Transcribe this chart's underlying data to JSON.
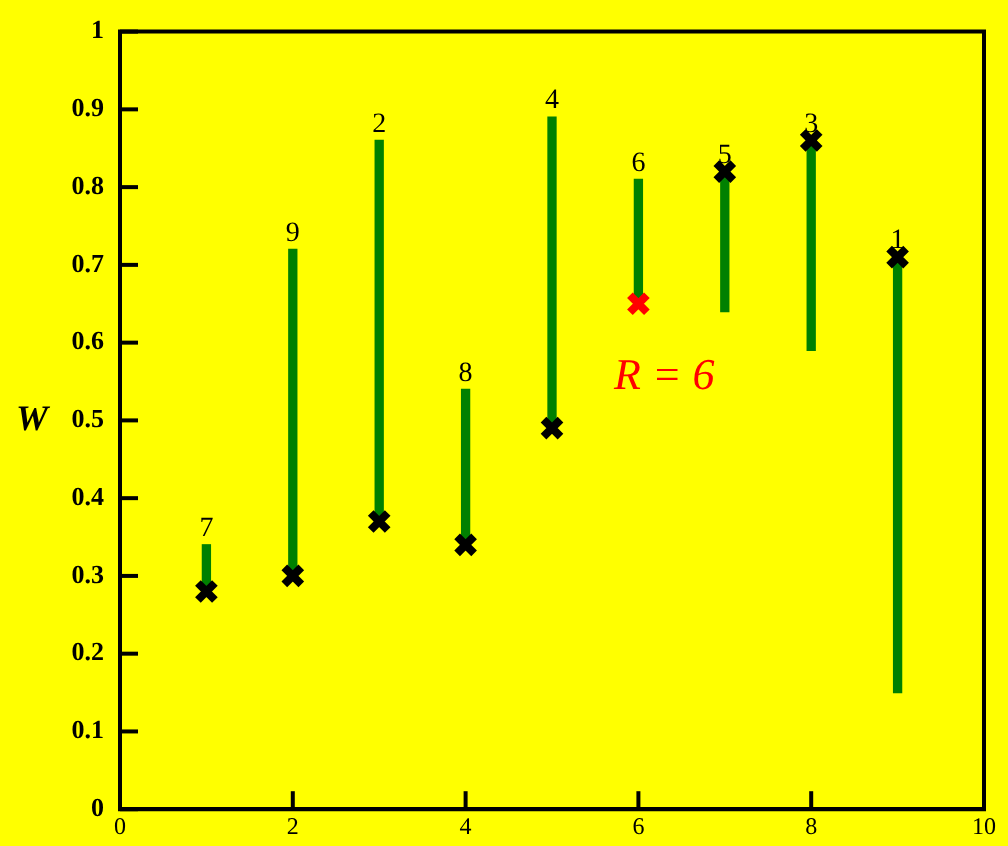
{
  "chart_data": {
    "type": "bar",
    "ylabel": "W",
    "xlim": [
      0,
      10
    ],
    "xticks": [
      0,
      2,
      4,
      6,
      8,
      10
    ],
    "ylim": [
      0,
      1
    ],
    "yticks": [
      0,
      0.1,
      0.2,
      0.3,
      0.4,
      0.5,
      0.6,
      0.7,
      0.8,
      0.9,
      1
    ],
    "grid": false,
    "x": [
      1,
      2,
      3,
      4,
      5,
      6,
      7,
      8,
      9
    ],
    "series": [
      {
        "color": "#008000",
        "base": [
          0.28,
          0.3,
          0.37,
          0.34,
          0.49,
          0.65,
          0.64,
          0.59,
          0.15
        ],
        "values": [
          0.06,
          0.42,
          0.49,
          0.2,
          0.4,
          0.16,
          0.18,
          0.27,
          0.56
        ]
      },
      {
        "type": "scatter",
        "marker": "cross",
        "colors": [
          "#000000",
          "#000000",
          "#000000",
          "#000000",
          "#000000",
          "#ff0000",
          "#000000",
          "#000000",
          "#000000"
        ],
        "values": [
          0.28,
          0.3,
          0.37,
          0.34,
          0.49,
          0.65,
          0.82,
          0.86,
          0.71
        ]
      }
    ],
    "annotations": [
      {
        "text": "7",
        "x": 1,
        "y": 0.34
      },
      {
        "text": "9",
        "x": 2,
        "y": 0.72
      },
      {
        "text": "2",
        "x": 3,
        "y": 0.86
      },
      {
        "text": "8",
        "x": 4,
        "y": 0.54
      },
      {
        "text": "4",
        "x": 5,
        "y": 0.89
      },
      {
        "text": "6",
        "x": 6,
        "y": 0.81
      },
      {
        "text": "5",
        "x": 7,
        "y": 0.82
      },
      {
        "text": "3",
        "x": 8,
        "y": 0.86
      },
      {
        "text": "1",
        "x": 9,
        "y": 0.71
      },
      "R = 6"
    ]
  }
}
